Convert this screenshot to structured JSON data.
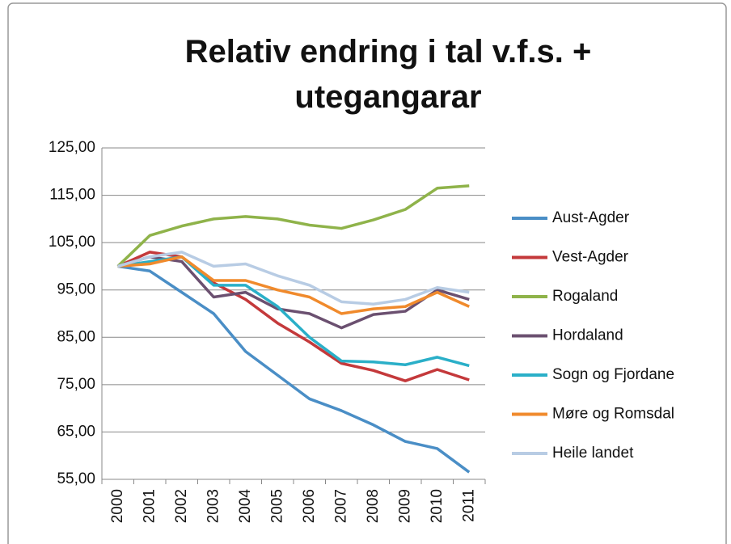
{
  "chart_data": {
    "type": "line",
    "title": "Relativ endring i tal v.f.s. + utegangarar",
    "categories": [
      "2000",
      "2001",
      "2002",
      "2003",
      "2004",
      "2005",
      "2006",
      "2007",
      "2008",
      "2009",
      "2010",
      "2011"
    ],
    "series": [
      {
        "name": "Aust-Agder",
        "color": "#4a8ec6",
        "values": [
          100,
          99,
          94.5,
          90,
          82,
          77,
          72,
          69.5,
          66.5,
          63,
          61.5,
          56.5
        ]
      },
      {
        "name": "Vest-Agder",
        "color": "#c4393b",
        "values": [
          100,
          103,
          102,
          96.5,
          93,
          88,
          84,
          79.5,
          78,
          75.8,
          78.2,
          76
        ]
      },
      {
        "name": "Rogaland",
        "color": "#8fb34a",
        "values": [
          100,
          106.5,
          108.5,
          110,
          110.5,
          110,
          108.7,
          108,
          109.8,
          112,
          116.5,
          117
        ]
      },
      {
        "name": "Hordaland",
        "color": "#6b5070",
        "values": [
          100,
          102,
          101,
          93.5,
          94.5,
          91,
          90,
          87,
          89.8,
          90.5,
          95,
          93
        ]
      },
      {
        "name": "Sogn og Fjordane",
        "color": "#2aafc8",
        "values": [
          100,
          101,
          102,
          96,
          96,
          91.5,
          85,
          80,
          79.8,
          79.2,
          80.8,
          79
        ]
      },
      {
        "name": "Møre og Romsdal",
        "color": "#f08a2c",
        "values": [
          100,
          100.5,
          102,
          97,
          97,
          95,
          93.5,
          90,
          91,
          91.5,
          94.5,
          91.5
        ]
      },
      {
        "name": "Heile landet",
        "color": "#b8cce4",
        "values": [
          100,
          102,
          103,
          100,
          100.5,
          98,
          96,
          92.5,
          92,
          93,
          95.5,
          94.5
        ]
      }
    ],
    "ylim": [
      55,
      125
    ],
    "yticks": [
      {
        "value": 55,
        "label": "55,00"
      },
      {
        "value": 65,
        "label": "65,00"
      },
      {
        "value": 75,
        "label": "75,00"
      },
      {
        "value": 85,
        "label": "85,00"
      },
      {
        "value": 95,
        "label": "95,00"
      },
      {
        "value": 105,
        "label": "105,00"
      },
      {
        "value": 115,
        "label": "115,00"
      },
      {
        "value": 125,
        "label": "125,00"
      }
    ],
    "grid": true,
    "legend": "right"
  }
}
